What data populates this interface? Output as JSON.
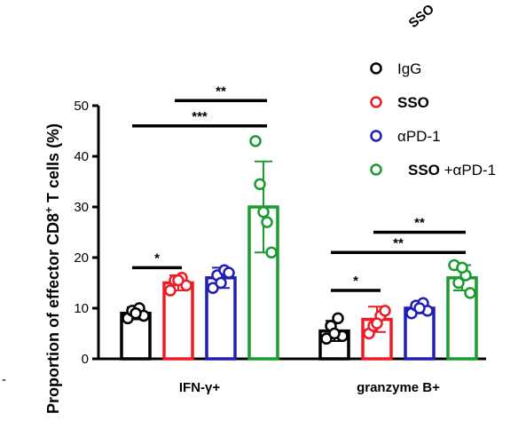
{
  "chart_data": {
    "type": "bar",
    "ylabel": "Proportion of effector CD8",
    "ylabel_superscript": "+",
    "ylabel_suffix": " T cells (%)",
    "ylim": [
      0,
      50
    ],
    "yticks": [
      0,
      10,
      20,
      30,
      40,
      50
    ],
    "categories": [
      "IFN-γ+",
      "granzyme B+"
    ],
    "series": [
      {
        "name": "IgG",
        "color": "#000000",
        "values": [
          9.0,
          5.5
        ],
        "sd": [
          1.2,
          2.0
        ],
        "points": [
          [
            8.0,
            9.5,
            10.0,
            8.5,
            9.0
          ],
          [
            4.0,
            6.5,
            8.0,
            4.5,
            5.0
          ]
        ]
      },
      {
        "name": "SSO",
        "color": "#ee1c25",
        "bold": true,
        "values": [
          15.0,
          7.8
        ],
        "sd": [
          1.5,
          2.5
        ],
        "points": [
          [
            13.5,
            15.5,
            16.0,
            14.5,
            15.5
          ],
          [
            5.0,
            6.5,
            8.5,
            9.5,
            7.0
          ]
        ]
      },
      {
        "name": "αPD-1",
        "color": "#1f1fb4",
        "values": [
          16.0,
          10.0
        ],
        "sd": [
          2.0,
          1.0
        ],
        "points": [
          [
            14.0,
            16.5,
            17.5,
            17.0,
            15.0
          ],
          [
            9.0,
            10.5,
            11.0,
            9.5,
            10.0
          ]
        ]
      },
      {
        "name": "SSO +αPD-1",
        "color": "#1a9b2e",
        "bold_part": "SSO",
        "rest_part": " +αPD-1",
        "values": [
          30.0,
          16.0
        ],
        "sd": [
          9.0,
          2.5
        ],
        "points": [
          [
            43.0,
            34.5,
            27.0,
            21.0,
            29.0
          ],
          [
            18.5,
            15.0,
            16.5,
            13.0,
            18.0
          ]
        ]
      }
    ],
    "significance": [
      {
        "category": 0,
        "from": 0,
        "to": 1,
        "y": 18.0,
        "label": "*"
      },
      {
        "category": 0,
        "from": 1,
        "to": 3,
        "y": 51.0,
        "label": "**"
      },
      {
        "category": 0,
        "from": 0,
        "to": 3,
        "y": 46.0,
        "label": "***"
      },
      {
        "category": 1,
        "from": 0,
        "to": 1,
        "y": 13.5,
        "label": "*"
      },
      {
        "category": 1,
        "from": 1,
        "to": 3,
        "y": 25.0,
        "label": "**"
      },
      {
        "category": 1,
        "from": 0,
        "to": 3,
        "y": 21.0,
        "label": "**"
      }
    ],
    "legend": "top-right",
    "grid": false
  },
  "crop_text": "SSO",
  "crop_dash": "-"
}
